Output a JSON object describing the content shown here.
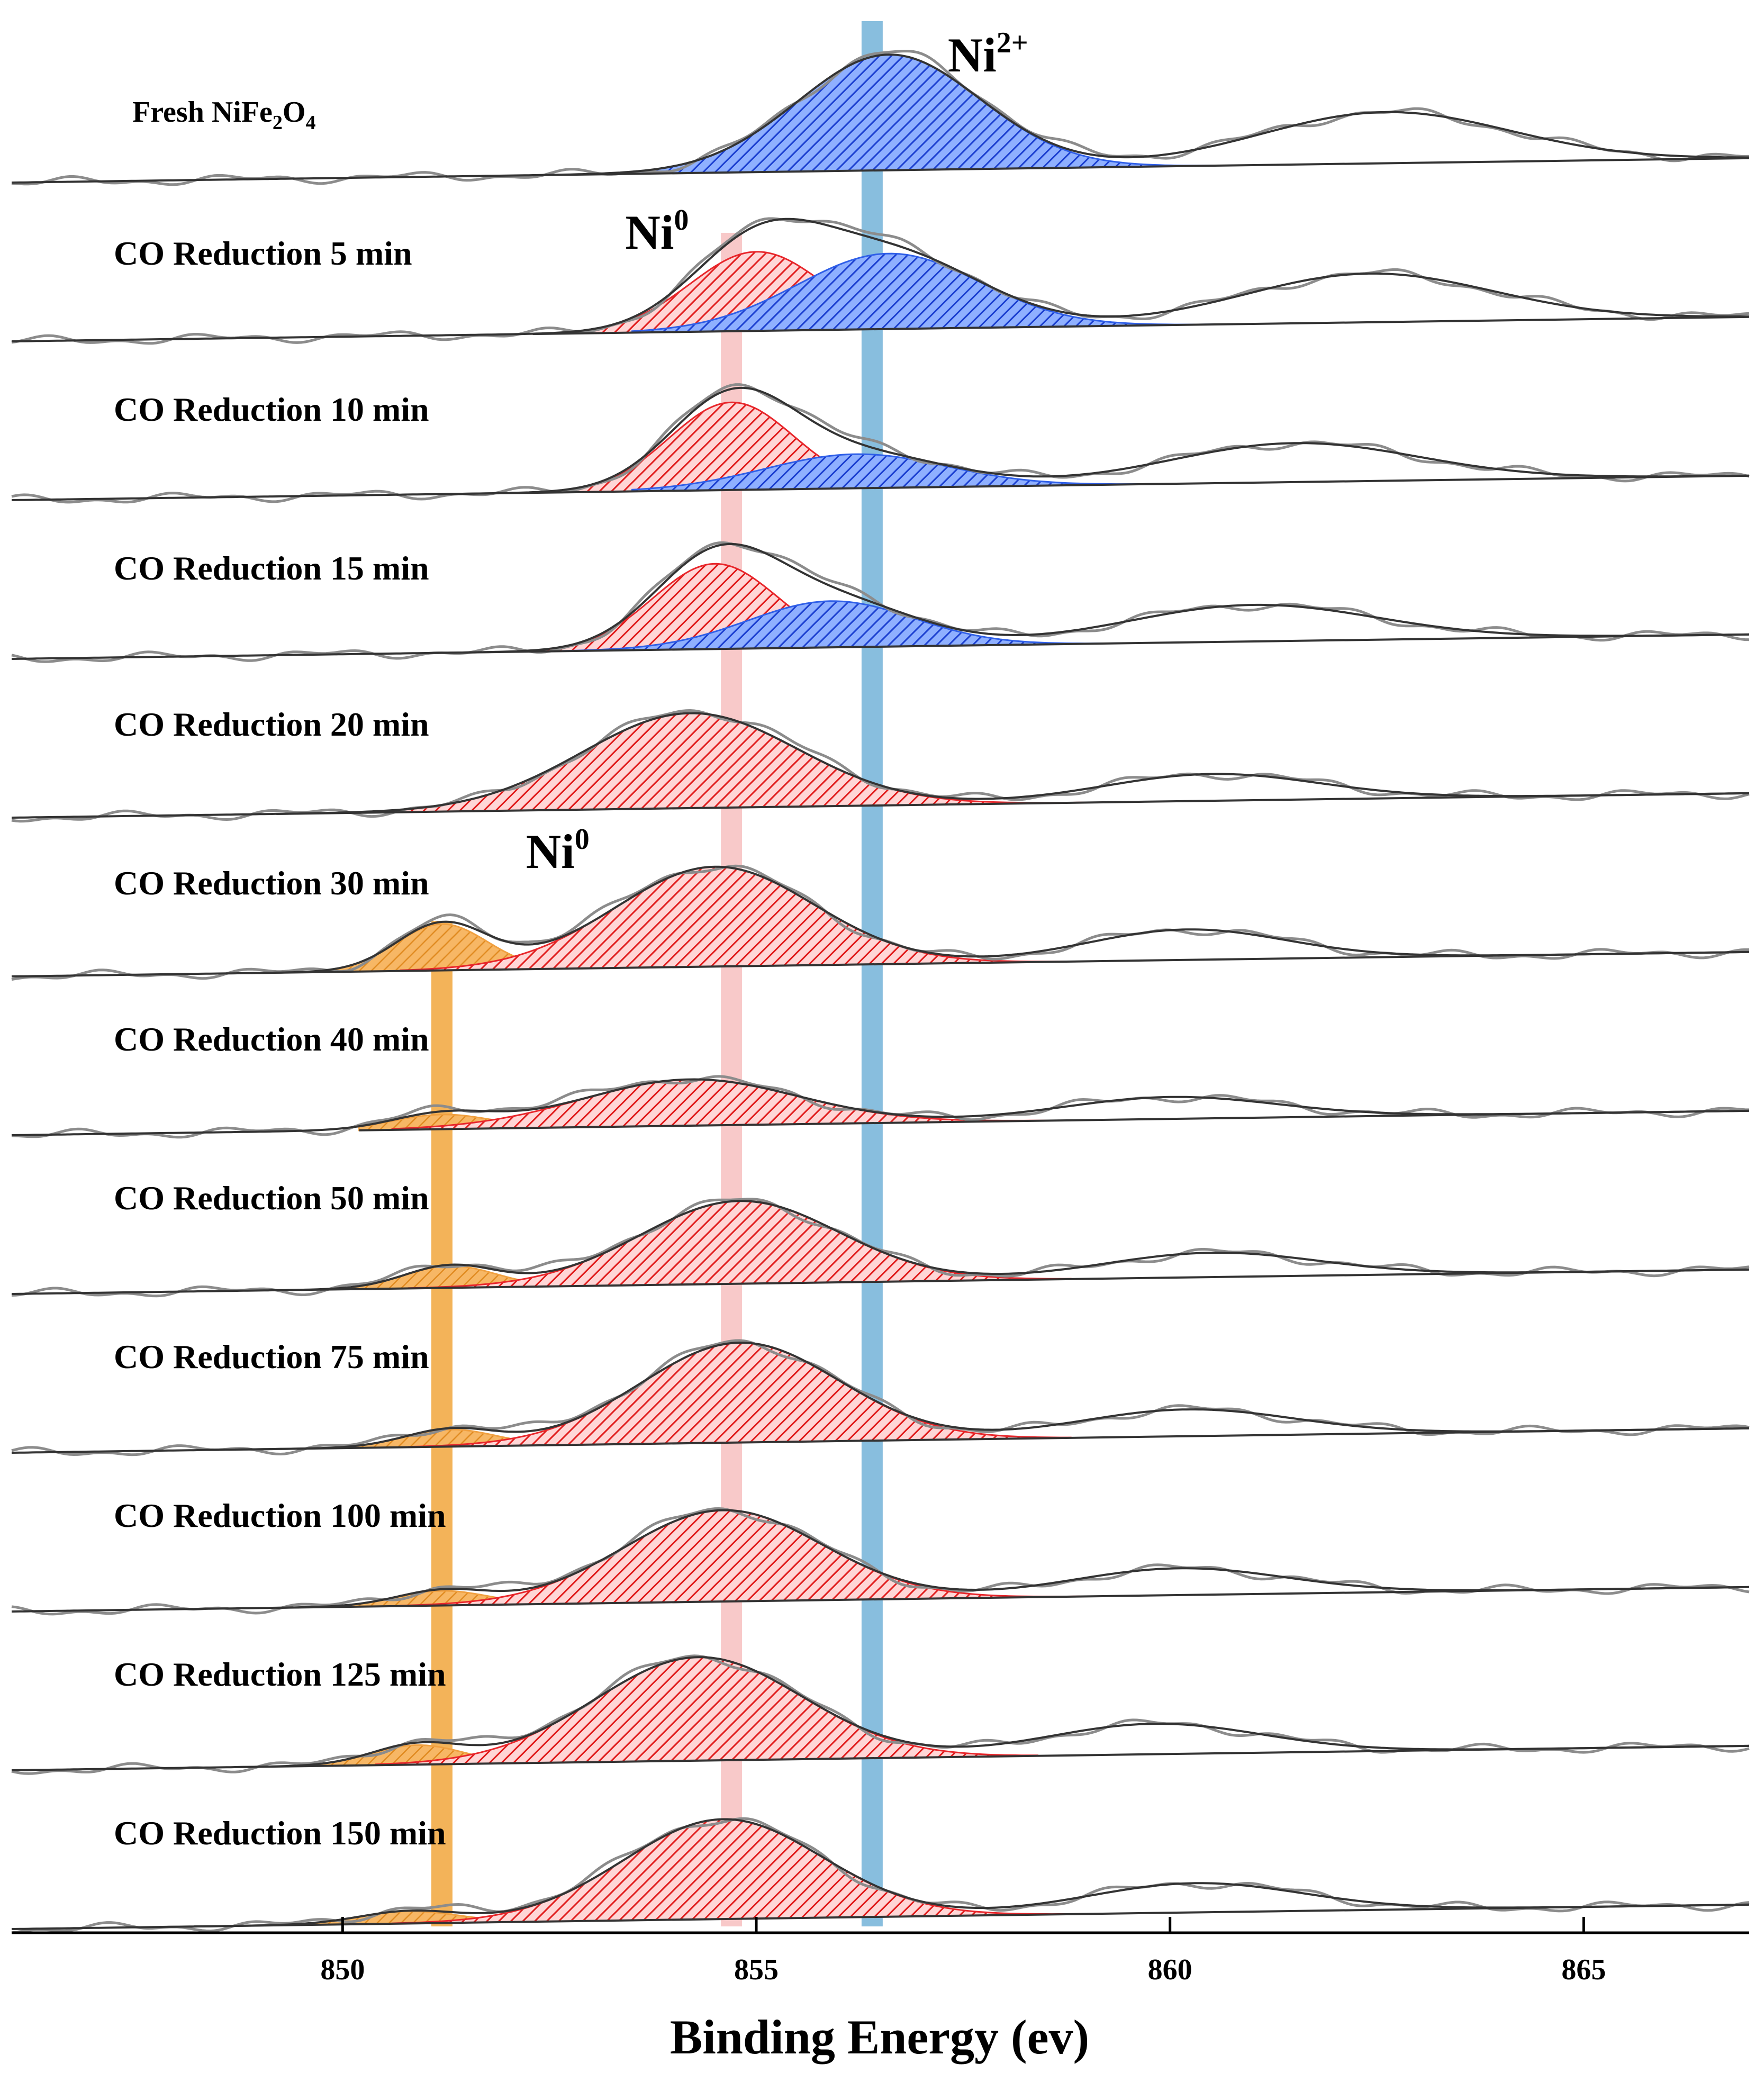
{
  "chart_data": {
    "type": "line",
    "title": "",
    "xlabel": "Binding Energy (ev)",
    "ylabel": "",
    "xlim": [
      846,
      867
    ],
    "xticks": [
      850,
      855,
      860,
      865
    ],
    "grid": false,
    "colors": {
      "ni2_fill": "#2f5fe8",
      "ni0_fill": "#e8262b",
      "ni0_low_fill": "#f0a040",
      "ni2_band": "#6aaed6",
      "ni0_band": "#f4a5a5",
      "ni0_low_band": "#f0a030",
      "line_dark": "#333333",
      "line_grey": "#8c8c8c"
    },
    "reference_lines": [
      {
        "name": "Ni0 (low BE)",
        "x": 851.2,
        "color": "#f0a030"
      },
      {
        "name": "Ni0",
        "x": 854.7,
        "color": "#f4a5a5"
      },
      {
        "name": "Ni2+",
        "x": 856.4,
        "color": "#6aaed6"
      }
    ],
    "annotations": [
      {
        "base": "Ni",
        "sup": "2+",
        "x": 857.8,
        "row": 0
      },
      {
        "base": "Ni",
        "sup": "0",
        "x": 853.8,
        "row": 1
      },
      {
        "base": "Ni",
        "sup": "0",
        "x": 852.6,
        "row": 5
      }
    ],
    "series": [
      {
        "name": "Fresh NiFe2O4",
        "label_base": "Fresh NiFe",
        "sub1": "2",
        "mid": "O",
        "sub2": "4",
        "peaks": [
          {
            "state": "Ni2+",
            "center": 856.6,
            "amp": 0.95,
            "sigma": 1.1,
            "from": 852.3,
            "to": 861.2
          }
        ],
        "sat": [
          {
            "center": 862.6,
            "amp": 0.42,
            "sigma": 1.5
          }
        ],
        "x_start": 846,
        "x_end": 867
      },
      {
        "name": "CO Reduction 5 min",
        "peaks": [
          {
            "state": "Ni0",
            "center": 855.0,
            "amp": 0.65,
            "sigma": 0.8,
            "from": 852.3,
            "to": 856.5
          },
          {
            "state": "Ni2+",
            "center": 856.6,
            "amp": 0.62,
            "sigma": 1.1,
            "from": 853.5,
            "to": 864.9
          }
        ],
        "sat": [
          {
            "center": 862.4,
            "amp": 0.4,
            "sigma": 1.5
          }
        ],
        "x_start": 846,
        "x_end": 867
      },
      {
        "name": "CO Reduction 10 min",
        "peaks": [
          {
            "state": "Ni0",
            "center": 854.7,
            "amp": 0.72,
            "sigma": 0.75,
            "from": 851.3,
            "to": 856.0
          },
          {
            "state": "Ni2+",
            "center": 856.2,
            "amp": 0.28,
            "sigma": 1.1,
            "from": 853.5,
            "to": 861.3
          }
        ],
        "sat": [
          {
            "center": 861.5,
            "amp": 0.32,
            "sigma": 1.5
          }
        ],
        "x_start": 846,
        "x_end": 867
      },
      {
        "name": "CO Reduction 15 min",
        "peaks": [
          {
            "state": "Ni0",
            "center": 854.5,
            "amp": 0.7,
            "sigma": 0.75,
            "from": 851.2,
            "to": 856.0
          },
          {
            "state": "Ni2+",
            "center": 855.9,
            "amp": 0.38,
            "sigma": 1.0,
            "from": 851.2,
            "to": 860.0
          }
        ],
        "sat": [
          {
            "center": 861.0,
            "amp": 0.3,
            "sigma": 1.5
          }
        ],
        "x_start": 846,
        "x_end": 867
      },
      {
        "name": "CO Reduction 20 min",
        "peaks": [
          {
            "state": "Ni0",
            "center": 854.2,
            "amp": 0.78,
            "sigma": 1.3,
            "from": 849.2,
            "to": 859.7
          }
        ],
        "sat": [
          {
            "center": 860.5,
            "amp": 0.22,
            "sigma": 1.3
          }
        ],
        "x_start": 846,
        "x_end": 867
      },
      {
        "name": "CO Reduction 30 min",
        "peaks": [
          {
            "state": "Ni0-low",
            "center": 851.2,
            "amp": 0.38,
            "sigma": 0.55,
            "from": 848.9,
            "to": 852.3
          },
          {
            "state": "Ni0",
            "center": 854.5,
            "amp": 0.82,
            "sigma": 1.2,
            "from": 850.7,
            "to": 858.8
          }
        ],
        "sat": [
          {
            "center": 860.2,
            "amp": 0.25,
            "sigma": 1.2
          }
        ],
        "x_start": 846,
        "x_end": 867
      },
      {
        "name": "CO Reduction 40 min",
        "peaks": [
          {
            "state": "Ni0-low",
            "center": 851.2,
            "amp": 0.12,
            "sigma": 0.6,
            "from": 850.2,
            "to": 853.5
          },
          {
            "state": "Ni0",
            "center": 854.2,
            "amp": 0.38,
            "sigma": 1.3,
            "from": 850.6,
            "to": 858.5
          }
        ],
        "sat": [
          {
            "center": 860.0,
            "amp": 0.18,
            "sigma": 1.3
          }
        ],
        "x_start": 846,
        "x_end": 867
      },
      {
        "name": "CO Reduction 50 min",
        "peaks": [
          {
            "state": "Ni0-low",
            "center": 851.3,
            "amp": 0.18,
            "sigma": 0.55,
            "from": 849.5,
            "to": 852.5
          },
          {
            "state": "Ni0",
            "center": 854.8,
            "amp": 0.68,
            "sigma": 1.2,
            "from": 850.8,
            "to": 858.8
          }
        ],
        "sat": [
          {
            "center": 860.5,
            "amp": 0.2,
            "sigma": 1.3
          }
        ],
        "x_start": 846,
        "x_end": 867
      },
      {
        "name": "CO Reduction 75 min",
        "peaks": [
          {
            "state": "Ni0-low",
            "center": 851.3,
            "amp": 0.14,
            "sigma": 0.55,
            "from": 848.7,
            "to": 852.4
          },
          {
            "state": "Ni0",
            "center": 854.8,
            "amp": 0.82,
            "sigma": 1.2,
            "from": 850.8,
            "to": 858.8
          }
        ],
        "sat": [
          {
            "center": 860.2,
            "amp": 0.22,
            "sigma": 1.3
          }
        ],
        "x_start": 846,
        "x_end": 867
      },
      {
        "name": "CO Reduction 100 min",
        "peaks": [
          {
            "state": "Ni0-low",
            "center": 851.2,
            "amp": 0.12,
            "sigma": 0.55,
            "from": 849.2,
            "to": 852.4
          },
          {
            "state": "Ni0",
            "center": 854.6,
            "amp": 0.75,
            "sigma": 1.2,
            "from": 850.7,
            "to": 858.9
          }
        ],
        "sat": [
          {
            "center": 860.1,
            "amp": 0.22,
            "sigma": 1.3
          }
        ],
        "x_start": 846,
        "x_end": 867
      },
      {
        "name": "CO Reduction 125 min",
        "peaks": [
          {
            "state": "Ni0-low",
            "center": 850.9,
            "amp": 0.16,
            "sigma": 0.55,
            "from": 848.7,
            "to": 852.0
          },
          {
            "state": "Ni0",
            "center": 854.3,
            "amp": 0.85,
            "sigma": 1.25,
            "from": 850.4,
            "to": 858.4
          }
        ],
        "sat": [
          {
            "center": 859.8,
            "amp": 0.25,
            "sigma": 1.3
          }
        ],
        "x_start": 846,
        "x_end": 867
      },
      {
        "name": "CO Reduction 150 min",
        "peaks": [
          {
            "state": "Ni0-low",
            "center": 850.8,
            "amp": 0.1,
            "sigma": 0.6,
            "from": 848.2,
            "to": 851.8
          },
          {
            "state": "Ni0",
            "center": 854.6,
            "amp": 0.82,
            "sigma": 1.2,
            "from": 850.6,
            "to": 859.3
          }
        ],
        "sat": [
          {
            "center": 860.3,
            "amp": 0.24,
            "sigma": 1.3
          }
        ],
        "x_start": 846,
        "x_end": 867
      }
    ]
  }
}
